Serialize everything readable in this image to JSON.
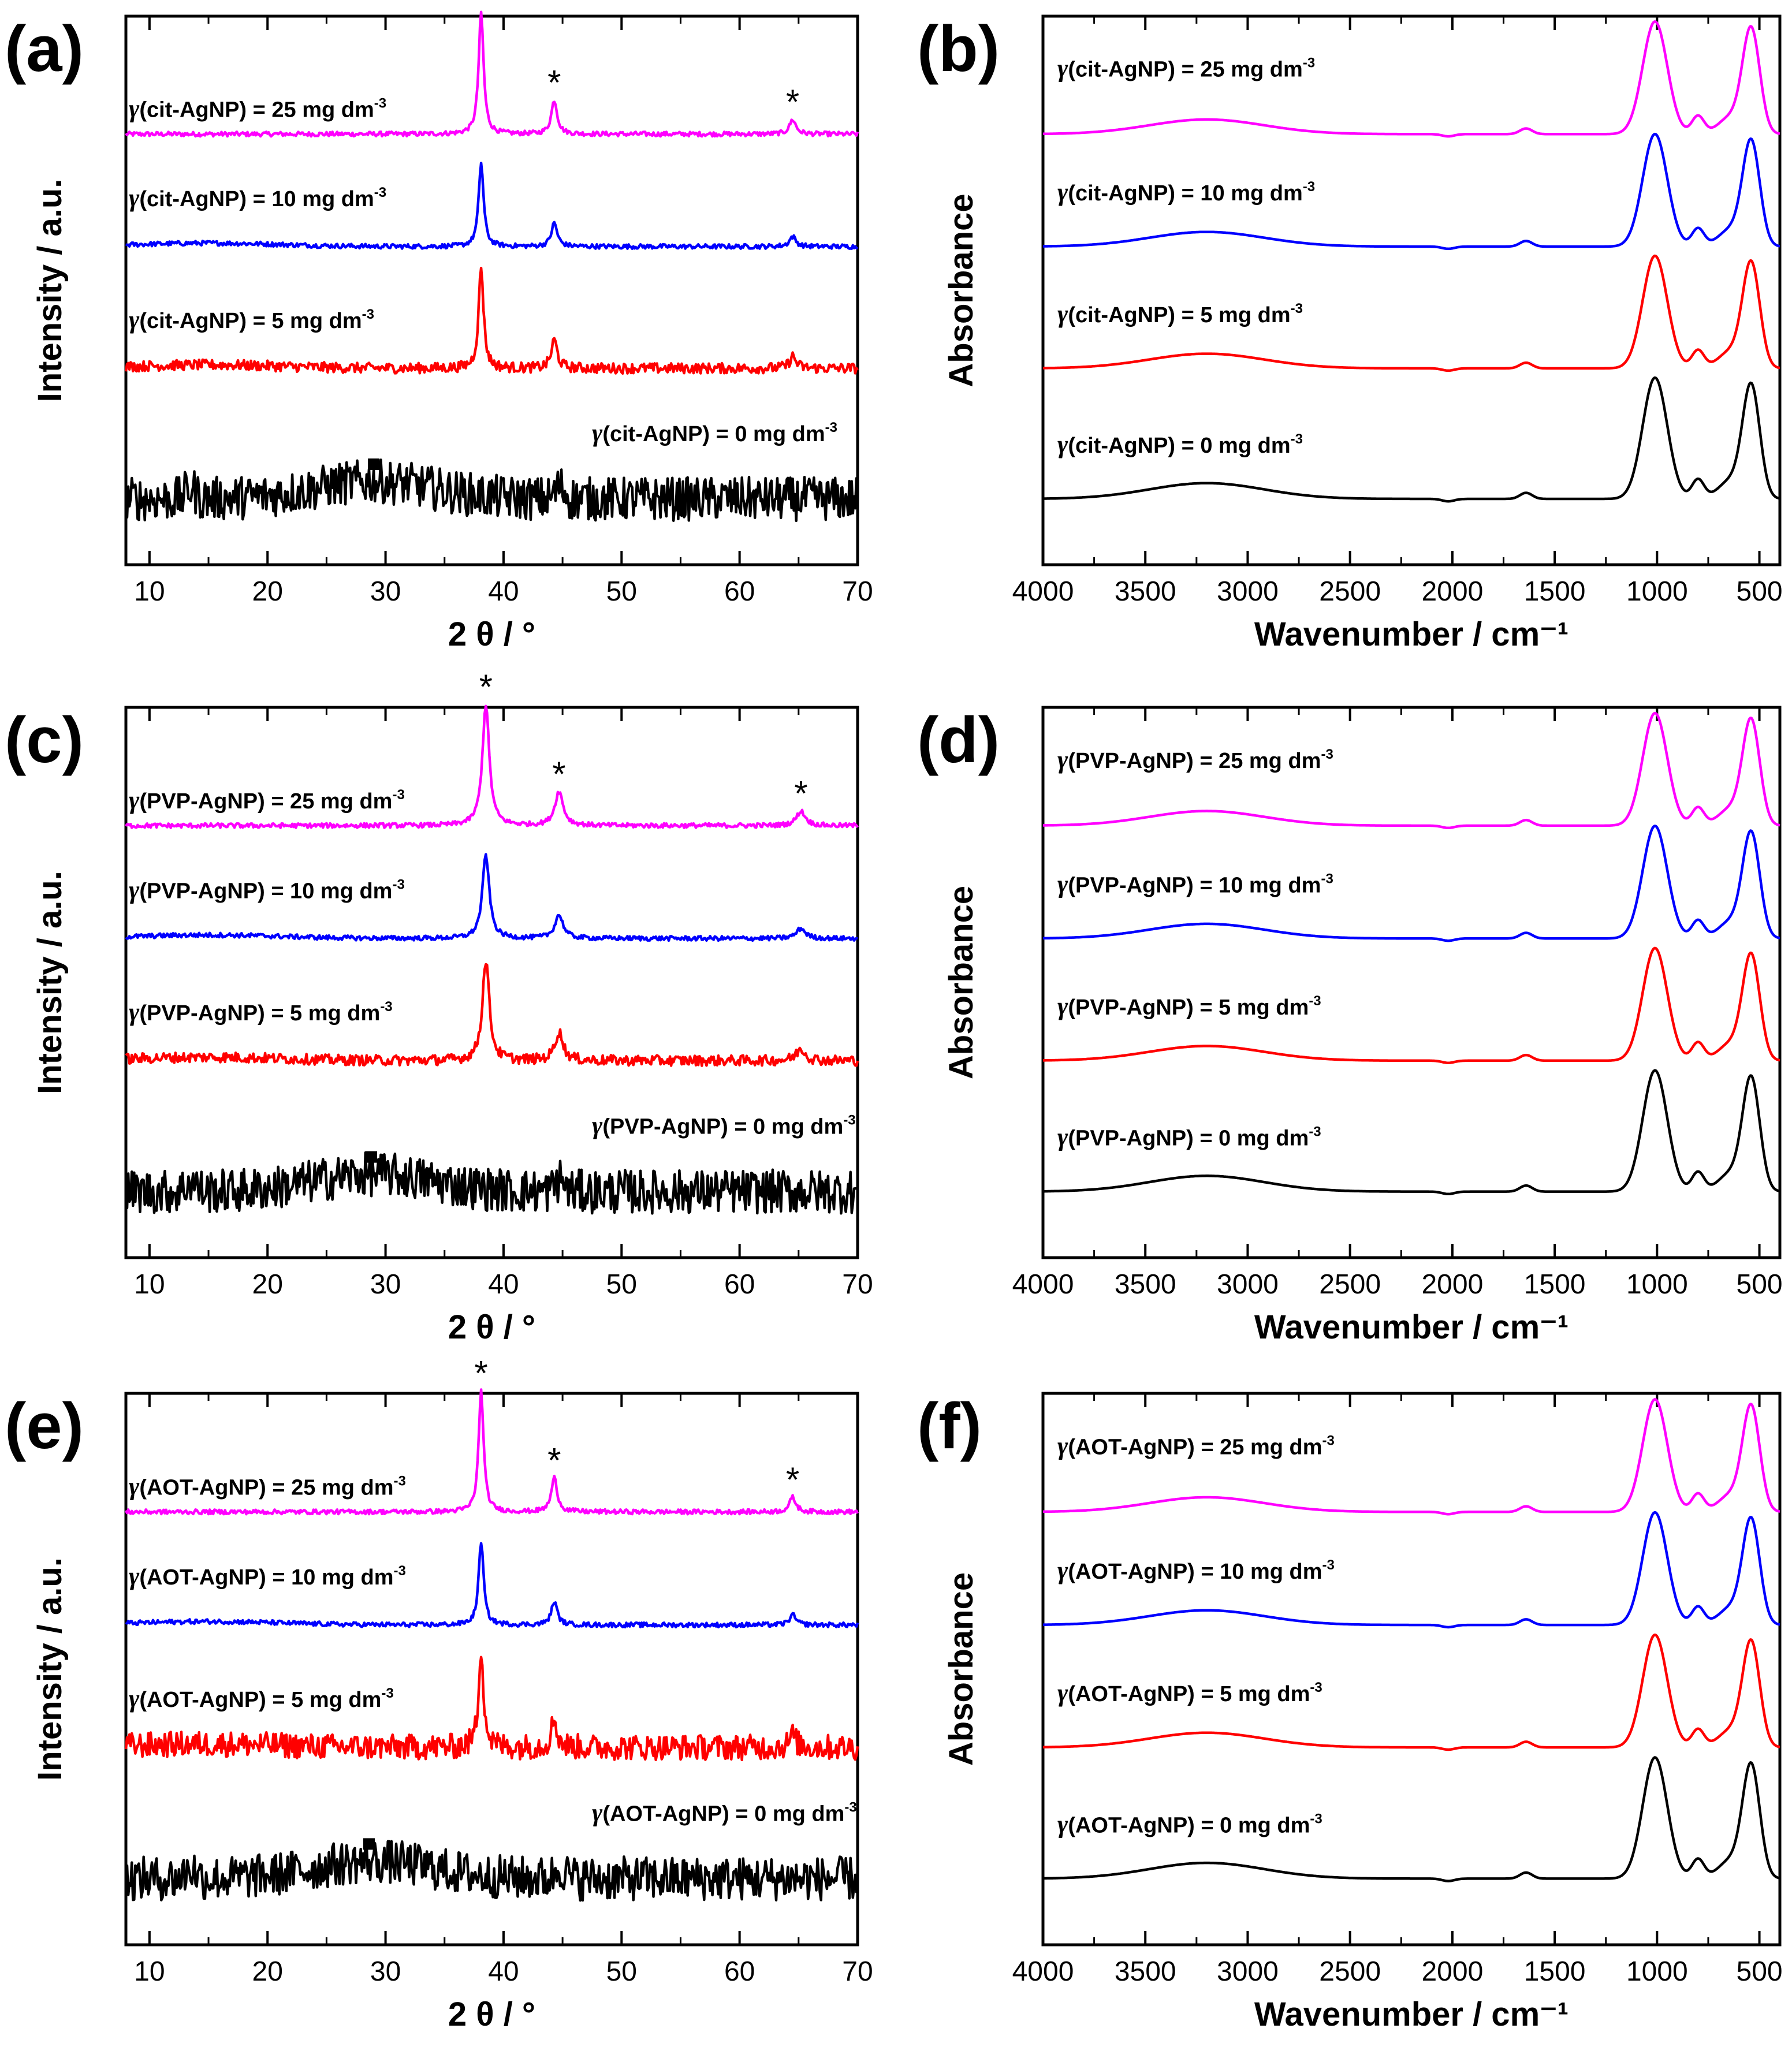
{
  "figure": {
    "panels": [
      {
        "letter": "(a)",
        "type": "xrd",
        "series": [
          {
            "label": "(cit-AgNP) = 25 mg dm",
            "conc": 25,
            "color": "#ff00ff"
          },
          {
            "label": "(cit-AgNP) = 10 mg dm",
            "conc": 10,
            "color": "#0000ff"
          },
          {
            "label": "(cit-AgNP) = 5 mg dm",
            "conc": 5,
            "color": "#ff0000"
          },
          {
            "label": "(cit-AgNP) = 0 mg dm",
            "conc": 0,
            "color": "#000000"
          }
        ]
      },
      {
        "letter": "(b)",
        "type": "ftir",
        "series": [
          {
            "label": "(cit-AgNP) = 25 mg dm",
            "conc": 25,
            "color": "#ff00ff"
          },
          {
            "label": "(cit-AgNP) = 10 mg dm",
            "conc": 10,
            "color": "#0000ff"
          },
          {
            "label": "(cit-AgNP) = 5 mg dm",
            "conc": 5,
            "color": "#ff0000"
          },
          {
            "label": "(cit-AgNP) = 0 mg dm",
            "conc": 0,
            "color": "#000000"
          }
        ]
      },
      {
        "letter": "(c)",
        "type": "xrd",
        "series": [
          {
            "label": "(PVP-AgNP) = 25 mg dm",
            "conc": 25,
            "color": "#ff00ff"
          },
          {
            "label": "(PVP-AgNP) = 10 mg dm",
            "conc": 10,
            "color": "#0000ff"
          },
          {
            "label": "(PVP-AgNP) = 5 mg dm",
            "conc": 5,
            "color": "#ff0000"
          },
          {
            "label": "(PVP-AgNP) = 0 mg dm",
            "conc": 0,
            "color": "#000000"
          }
        ]
      },
      {
        "letter": "(d)",
        "type": "ftir",
        "series": [
          {
            "label": "(PVP-AgNP) = 25 mg dm",
            "conc": 25,
            "color": "#ff00ff"
          },
          {
            "label": "(PVP-AgNP) = 10 mg dm",
            "conc": 10,
            "color": "#0000ff"
          },
          {
            "label": "(PVP-AgNP) = 5 mg dm",
            "conc": 5,
            "color": "#ff0000"
          },
          {
            "label": "(PVP-AgNP) = 0 mg dm",
            "conc": 0,
            "color": "#000000"
          }
        ]
      },
      {
        "letter": "(e)",
        "type": "xrd",
        "series": [
          {
            "label": "(AOT-AgNP) = 25 mg dm",
            "conc": 25,
            "color": "#ff00ff"
          },
          {
            "label": "(AOT-AgNP) = 10 mg dm",
            "conc": 10,
            "color": "#0000ff"
          },
          {
            "label": "(AOT-AgNP) = 5 mg dm",
            "conc": 5,
            "color": "#ff0000"
          },
          {
            "label": "(AOT-AgNP) = 0 mg dm",
            "conc": 0,
            "color": "#000000"
          }
        ]
      },
      {
        "letter": "(f)",
        "type": "ftir",
        "series": [
          {
            "label": "(AOT-AgNP) = 25 mg dm",
            "conc": 25,
            "color": "#ff00ff"
          },
          {
            "label": "(AOT-AgNP) = 10 mg dm",
            "conc": 10,
            "color": "#0000ff"
          },
          {
            "label": "(AOT-AgNP) = 5 mg dm",
            "conc": 5,
            "color": "#ff0000"
          },
          {
            "label": "(AOT-AgNP) = 0 mg dm",
            "conc": 0,
            "color": "#000000"
          }
        ]
      }
    ]
  },
  "chart_data": [
    {
      "type": "line",
      "panel": "(a)",
      "title": "",
      "xlabel": "2 θ / °",
      "ylabel": "Intensity / a.u.",
      "xlim": [
        8,
        70
      ],
      "xticks": [
        10,
        20,
        30,
        40,
        50,
        60,
        70
      ],
      "peak_marker": "*",
      "peaks_2theta": [
        38.1,
        44.3,
        64.5
      ],
      "square_marker_2theta": 29,
      "label_prefix": "γ",
      "label_exponent": "-3",
      "grid": false
    },
    {
      "type": "line",
      "panel": "(b)",
      "title": "",
      "xlabel": "Wavenumber / cm⁻¹",
      "ylabel": "Absorbance",
      "xlim": [
        4000,
        400
      ],
      "xticks": [
        4000,
        3500,
        3000,
        2500,
        2000,
        1500,
        1000,
        500
      ],
      "bands_cm1": [
        3250,
        1635,
        1000,
        800,
        530
      ],
      "label_prefix": "γ",
      "label_exponent": "-3",
      "grid": false
    },
    {
      "type": "line",
      "panel": "(c)",
      "title": "",
      "xlabel": "2 θ / °",
      "ylabel": "Intensity / a.u.",
      "xlim": [
        8,
        70
      ],
      "xticks": [
        10,
        20,
        30,
        40,
        50,
        60,
        70
      ],
      "peak_marker": "*",
      "peaks_2theta": [
        38.5,
        44.7,
        65.2
      ],
      "square_marker_2theta": 28.8,
      "label_prefix": "γ",
      "label_exponent": "-3",
      "grid": false
    },
    {
      "type": "line",
      "panel": "(d)",
      "title": "",
      "xlabel": "Wavenumber / cm⁻¹",
      "ylabel": "Absorbance",
      "xlim": [
        4000,
        400
      ],
      "xticks": [
        4000,
        3500,
        3000,
        2500,
        2000,
        1500,
        1000,
        500
      ],
      "bands_cm1": [
        3250,
        1635,
        1000,
        800,
        530
      ],
      "label_prefix": "γ",
      "label_exponent": "-3",
      "grid": false
    },
    {
      "type": "line",
      "panel": "(e)",
      "title": "",
      "xlabel": "2 θ / °",
      "ylabel": "Intensity / a.u.",
      "xlim": [
        8,
        70
      ],
      "xticks": [
        10,
        20,
        30,
        40,
        50,
        60,
        70
      ],
      "peak_marker": "*",
      "peaks_2theta": [
        38.1,
        44.3,
        64.5
      ],
      "square_marker_2theta": 28.6,
      "label_prefix": "γ",
      "label_exponent": "-3",
      "grid": false
    },
    {
      "type": "line",
      "panel": "(f)",
      "title": "",
      "xlabel": "Wavenumber / cm⁻¹",
      "ylabel": "Absorbance",
      "xlim": [
        4000,
        400
      ],
      "xticks": [
        4000,
        3500,
        3000,
        2500,
        2000,
        1500,
        1000,
        500
      ],
      "bands_cm1": [
        3250,
        1635,
        1000,
        800,
        530
      ],
      "label_prefix": "γ",
      "label_exponent": "-3",
      "grid": false
    }
  ]
}
